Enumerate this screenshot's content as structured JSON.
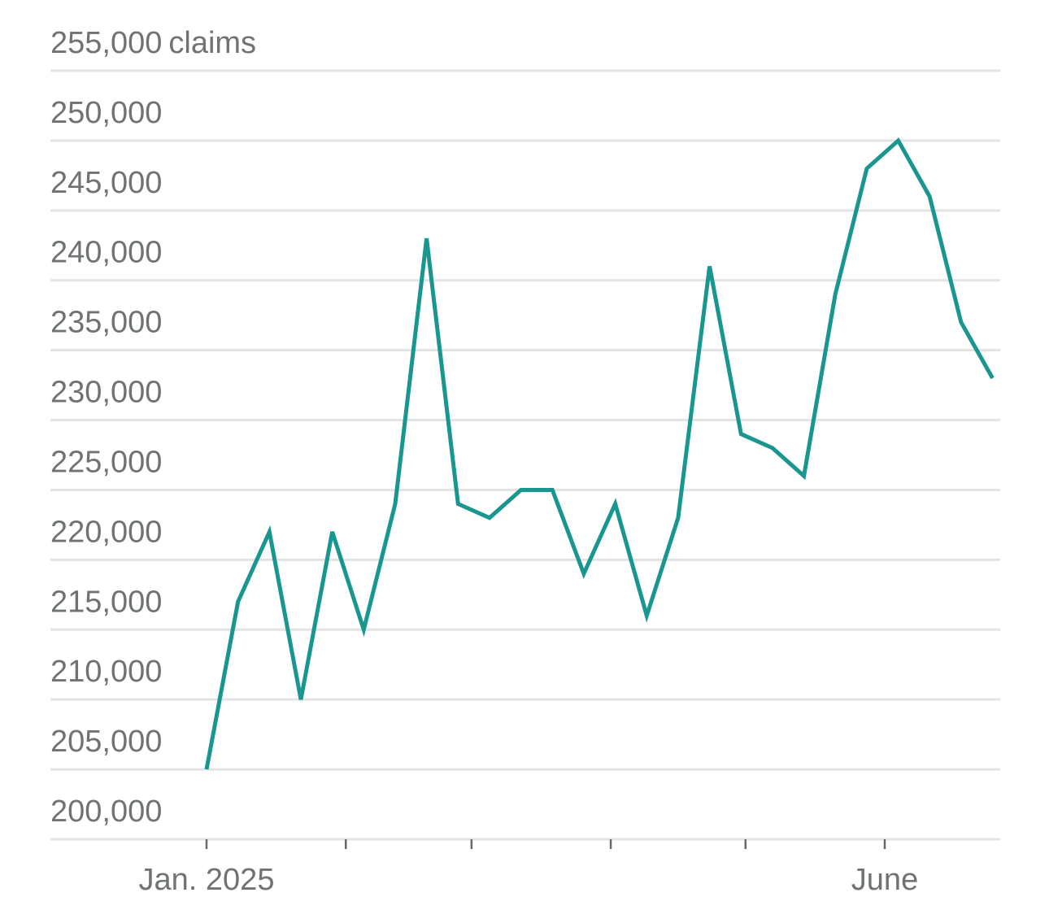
{
  "chart_data": {
    "type": "line",
    "y_unit_label": "claims",
    "ylim": [
      200000,
      255000
    ],
    "yticks": [
      200000,
      205000,
      210000,
      215000,
      220000,
      225000,
      230000,
      235000,
      240000,
      245000,
      250000,
      255000
    ],
    "ytick_labels": [
      "200,000",
      "205,000",
      "210,000",
      "215,000",
      "220,000",
      "225,000",
      "230,000",
      "235,000",
      "240,000",
      "245,000",
      "250,000",
      "255,000"
    ],
    "xticks": [
      {
        "date": "2025-01-01",
        "label": "Jan. 2025"
      },
      {
        "date": "2025-02-01",
        "label": ""
      },
      {
        "date": "2025-03-01",
        "label": ""
      },
      {
        "date": "2025-04-01",
        "label": ""
      },
      {
        "date": "2025-05-01",
        "label": ""
      },
      {
        "date": "2025-06-01",
        "label": "June"
      }
    ],
    "grid": true,
    "series": [
      {
        "color": "#1a9690",
        "points": [
          {
            "x": "2025-01-01",
            "y": 205000
          },
          {
            "x": "2025-01-08",
            "y": 217000
          },
          {
            "x": "2025-01-15",
            "y": 222000
          },
          {
            "x": "2025-01-22",
            "y": 210000
          },
          {
            "x": "2025-01-29",
            "y": 222000
          },
          {
            "x": "2025-02-05",
            "y": 215000
          },
          {
            "x": "2025-02-12",
            "y": 224000
          },
          {
            "x": "2025-02-19",
            "y": 243000
          },
          {
            "x": "2025-02-26",
            "y": 224000
          },
          {
            "x": "2025-03-05",
            "y": 223000
          },
          {
            "x": "2025-03-12",
            "y": 225000
          },
          {
            "x": "2025-03-19",
            "y": 225000
          },
          {
            "x": "2025-03-26",
            "y": 219000
          },
          {
            "x": "2025-04-02",
            "y": 224000
          },
          {
            "x": "2025-04-09",
            "y": 216000
          },
          {
            "x": "2025-04-16",
            "y": 223000
          },
          {
            "x": "2025-04-23",
            "y": 241000
          },
          {
            "x": "2025-04-30",
            "y": 229000
          },
          {
            "x": "2025-05-07",
            "y": 228000
          },
          {
            "x": "2025-05-14",
            "y": 226000
          },
          {
            "x": "2025-05-21",
            "y": 239000
          },
          {
            "x": "2025-05-28",
            "y": 248000
          },
          {
            "x": "2025-06-04",
            "y": 250000
          },
          {
            "x": "2025-06-11",
            "y": 246000
          },
          {
            "x": "2025-06-18",
            "y": 237000
          },
          {
            "x": "2025-06-25",
            "y": 233000
          }
        ]
      }
    ]
  }
}
